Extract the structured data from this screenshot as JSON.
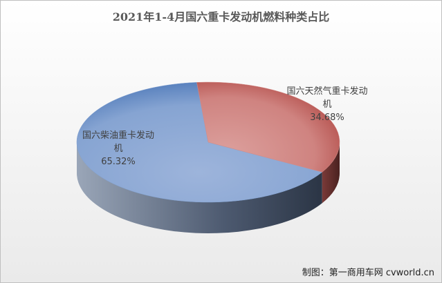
{
  "chart_data": {
    "type": "pie3d",
    "title": "2021年1-4月国六重卡发动机燃料种类占比",
    "categories": [
      "国六柴油重卡发动机",
      "国六天然气重卡发动机"
    ],
    "values": [
      65.32,
      34.68
    ],
    "value_labels": [
      "65.32%",
      "34.68%"
    ],
    "colors": [
      "#7f9fcf",
      "#d48a86"
    ],
    "source": "制图：第一商用车网 cvworld.cn"
  }
}
